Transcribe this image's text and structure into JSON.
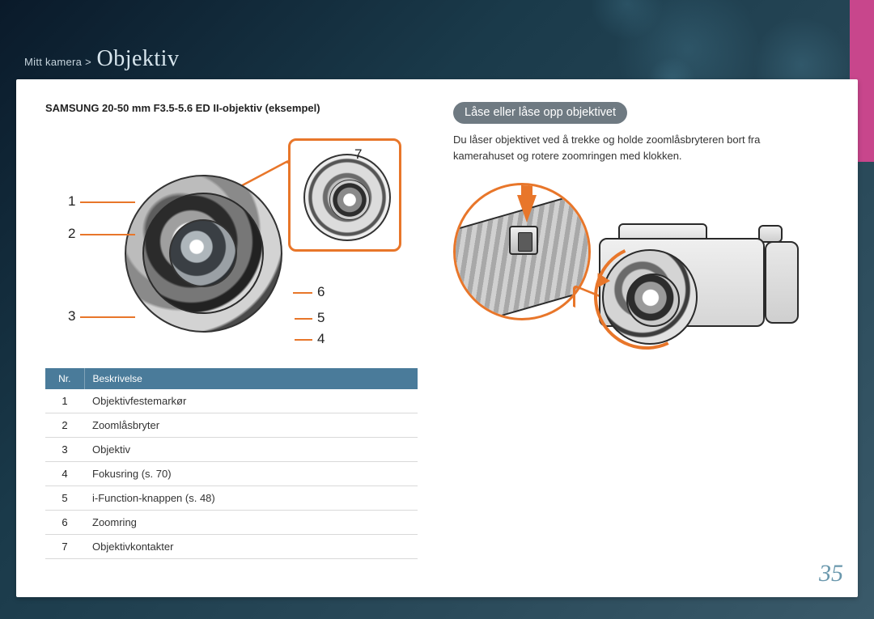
{
  "breadcrumb": {
    "prefix": "Mitt kamera >",
    "title": "Objektiv"
  },
  "page_number": "35",
  "accent_color": "#e8762a",
  "tab_color": "#c8468c",
  "left": {
    "lens_title": "SAMSUNG 20-50 mm F3.5-5.6 ED II-objektiv (eksempel)",
    "callouts": {
      "1": "1",
      "2": "2",
      "3": "3",
      "4": "4",
      "5": "5",
      "6": "6",
      "7": "7"
    },
    "table": {
      "header_bg": "#4a7b9a",
      "headers": {
        "nr": "Nr.",
        "desc": "Beskrivelse"
      },
      "rows": [
        {
          "nr": "1",
          "desc": "Objektivfestemarkør"
        },
        {
          "nr": "2",
          "desc": "Zoomlåsbryter"
        },
        {
          "nr": "3",
          "desc": "Objektiv"
        },
        {
          "nr": "4",
          "desc": "Fokusring (s. 70)"
        },
        {
          "nr": "5",
          "desc": "i-Function-knappen (s. 48)"
        },
        {
          "nr": "6",
          "desc": "Zoomring"
        },
        {
          "nr": "7",
          "desc": "Objektivkontakter"
        }
      ]
    }
  },
  "right": {
    "pill": "Låse eller låse opp objektivet",
    "paragraph": "Du låser objektivet ved å trekke og holde zoomlåsbryteren bort fra kamerahuset og rotere zoomringen med klokken."
  }
}
